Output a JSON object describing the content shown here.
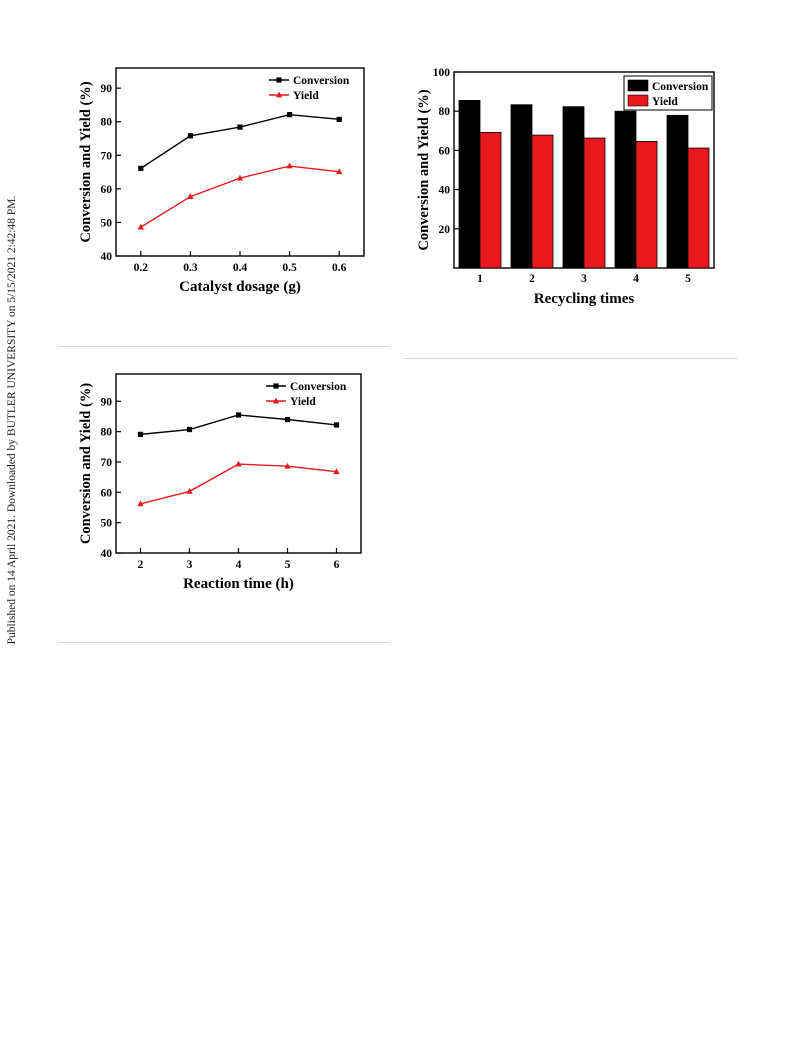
{
  "side_note": "Published on 14 April 2021. Downloaded by BUTLER UNIVERSITY on 5/15/2021 2:42:48 PM.",
  "colors": {
    "conversion": "#000000",
    "yield": "#e8191d",
    "axis": "#000000",
    "rule": "#d8d6cf"
  },
  "chart_data": [
    {
      "id": "dosage",
      "type": "line",
      "title": "",
      "xlabel": "Catalyst dosage (g)",
      "ylabel": "Conversion and Yield (%)",
      "x": [
        0.2,
        0.3,
        0.4,
        0.5,
        0.6
      ],
      "x_tick_labels": [
        "0.2",
        "0.3",
        "0.4",
        "0.5",
        "0.6"
      ],
      "xlim": [
        0.15,
        0.65
      ],
      "ylim": [
        40,
        96
      ],
      "y_ticks": [
        40,
        50,
        60,
        70,
        80,
        90
      ],
      "grid": false,
      "legend_position": "top-right",
      "series": [
        {
          "name": "Conversion",
          "marker": "square",
          "color": "#000000",
          "values": [
            66.1,
            75.8,
            78.4,
            82.1,
            80.7
          ]
        },
        {
          "name": "Yield",
          "marker": "triangle",
          "color": "#e8191d",
          "values": [
            48.6,
            57.7,
            63.2,
            66.8,
            65.1
          ]
        }
      ]
    },
    {
      "id": "recycling",
      "type": "bar",
      "title": "",
      "xlabel": "Recycling times",
      "ylabel": "Conversion and Yield (%)",
      "categories": [
        "1",
        "2",
        "3",
        "4",
        "5"
      ],
      "ylim": [
        0,
        100
      ],
      "y_ticks": [
        20,
        40,
        60,
        80,
        100
      ],
      "grid": false,
      "legend_position": "top-right",
      "series": [
        {
          "name": "Conversion",
          "color": "#000000",
          "values": [
            85.5,
            83.3,
            82.3,
            80.0,
            77.9
          ]
        },
        {
          "name": "Yield",
          "color": "#e8191d",
          "values": [
            69.2,
            67.8,
            66.3,
            64.6,
            61.2
          ]
        }
      ]
    },
    {
      "id": "reaction_time",
      "type": "line",
      "title": "",
      "xlabel": "Reaction time (h)",
      "ylabel": "Conversion and Yield (%)",
      "x": [
        2,
        3,
        4,
        5,
        6
      ],
      "x_tick_labels": [
        "2",
        "3",
        "4",
        "5",
        "6"
      ],
      "xlim": [
        1.5,
        6.5
      ],
      "ylim": [
        40,
        99
      ],
      "y_ticks": [
        40,
        50,
        60,
        70,
        80,
        90
      ],
      "grid": false,
      "legend_position": "top-right",
      "series": [
        {
          "name": "Conversion",
          "marker": "square",
          "color": "#000000",
          "values": [
            79.1,
            80.7,
            85.5,
            84.0,
            82.2
          ]
        },
        {
          "name": "Yield",
          "marker": "triangle",
          "color": "#e8191d",
          "values": [
            56.2,
            60.3,
            69.3,
            68.6,
            66.8
          ]
        }
      ]
    }
  ]
}
